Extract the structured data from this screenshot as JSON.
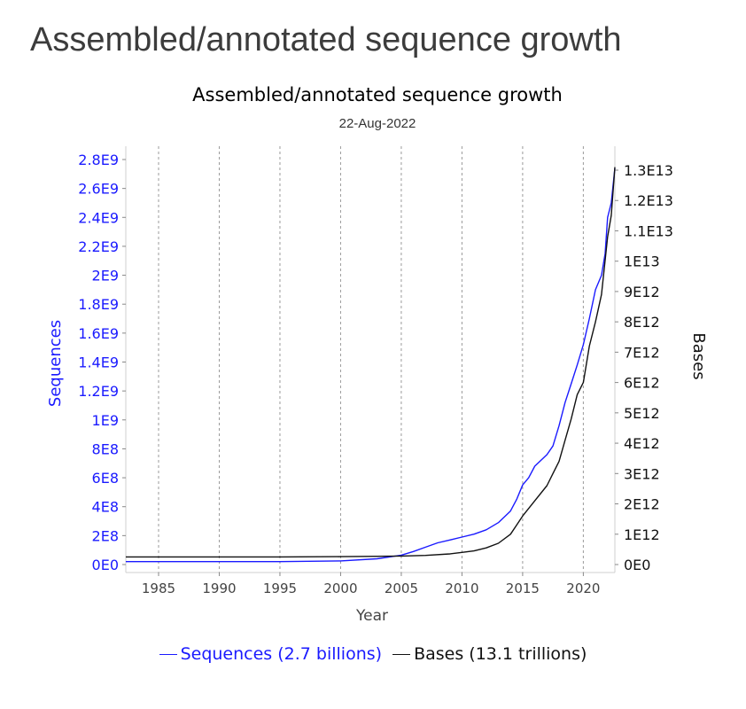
{
  "page": {
    "heading": "Assembled/annotated sequence growth"
  },
  "colors": {
    "sequences": "#1a1aff",
    "bases": "#111111"
  },
  "chart_data": {
    "type": "line",
    "title": "Assembled/annotated sequence growth",
    "subtitle": "22-Aug-2022",
    "xlabel": "Year",
    "ylabel_left": "Sequences",
    "ylabel_right": "Bases",
    "xlim": [
      1982.3,
      2022.6
    ],
    "ylim_left": [
      0,
      2800000000.0
    ],
    "ylim_right": [
      0,
      13000000000000.0
    ],
    "x_ticks": [
      1985,
      1990,
      1995,
      2000,
      2005,
      2010,
      2015,
      2020
    ],
    "x_tick_labels": [
      "1985",
      "1990",
      "1995",
      "2000",
      "2005",
      "2010",
      "2015",
      "2020"
    ],
    "y_left_ticks": [
      0,
      200000000.0,
      400000000.0,
      600000000.0,
      800000000.0,
      1000000000.0,
      1200000000.0,
      1400000000.0,
      1600000000.0,
      1800000000.0,
      2000000000.0,
      2200000000.0,
      2400000000.0,
      2600000000.0,
      2800000000.0
    ],
    "y_left_tick_labels": [
      "0E0",
      "2E8",
      "4E8",
      "6E8",
      "8E8",
      "1E9",
      "1.2E9",
      "1.4E9",
      "1.6E9",
      "1.8E9",
      "2E9",
      "2.2E9",
      "2.4E9",
      "2.6E9",
      "2.8E9"
    ],
    "y_right_ticks": [
      0,
      1000000000000.0,
      2000000000000.0,
      3000000000000.0,
      4000000000000.0,
      5000000000000.0,
      6000000000000.0,
      7000000000000.0,
      8000000000000.0,
      9000000000000.0,
      10000000000000.0,
      11000000000000.0,
      12000000000000.0,
      13000000000000.0
    ],
    "y_right_tick_labels": [
      "0E0",
      "1E12",
      "2E12",
      "3E12",
      "4E12",
      "5E12",
      "6E12",
      "7E12",
      "8E12",
      "9E12",
      "1E13",
      "1.1E13",
      "1.2E13",
      "1.3E13"
    ],
    "vertical_grid": true,
    "horizontal_grid": false,
    "legend_position": "bottom",
    "series": [
      {
        "name": "Sequences (2.7 billions)",
        "axis": "left",
        "x": [
          1982.3,
          1990,
          1995,
          2000,
          2003,
          2005,
          2006,
          2007,
          2008,
          2009,
          2010,
          2011,
          2012,
          2013,
          2014,
          2014.5,
          2015,
          2015.5,
          2016,
          2017,
          2017.5,
          2018,
          2018.5,
          2019,
          2019.5,
          2020,
          2020.5,
          2021,
          2021.5,
          2021.8,
          2022,
          2022.3,
          2022.6
        ],
        "y": [
          20000000.0,
          20000000.0,
          20000000.0,
          25000000.0,
          40000000.0,
          65000000.0,
          90000000.0,
          120000000.0,
          150000000.0,
          170000000.0,
          190000000.0,
          210000000.0,
          240000000.0,
          290000000.0,
          370000000.0,
          450000000.0,
          550000000.0,
          600000000.0,
          680000000.0,
          760000000.0,
          820000000.0,
          960000000.0,
          1120000000.0,
          1250000000.0,
          1380000000.0,
          1520000000.0,
          1700000000.0,
          1900000000.0,
          2000000000.0,
          2150000000.0,
          2400000000.0,
          2500000000.0,
          2740000000.0
        ]
      },
      {
        "name": "Bases (13.1 trillions)",
        "axis": "right",
        "x": [
          1982.3,
          1990,
          1995,
          2000,
          2005,
          2007,
          2009,
          2010,
          2011,
          2012,
          2013,
          2014,
          2014.5,
          2015,
          2016,
          2017,
          2017.5,
          2018,
          2018.5,
          2019,
          2019.5,
          2020,
          2020.5,
          2021,
          2021.5,
          2022,
          2022.3,
          2022.6
        ],
        "y": [
          250000000000.0,
          250000000000.0,
          250000000000.0,
          260000000000.0,
          280000000000.0,
          300000000000.0,
          350000000000.0,
          400000000000.0,
          450000000000.0,
          550000000000.0,
          700000000000.0,
          1000000000000.0,
          1300000000000.0,
          1600000000000.0,
          2100000000000.0,
          2600000000000.0,
          3000000000000.0,
          3400000000000.0,
          4100000000000.0,
          4800000000000.0,
          5600000000000.0,
          6000000000000.0,
          7200000000000.0,
          8000000000000.0,
          8900000000000.0,
          10800000000000.0,
          11500000000000.0,
          13100000000000.0
        ]
      }
    ]
  }
}
